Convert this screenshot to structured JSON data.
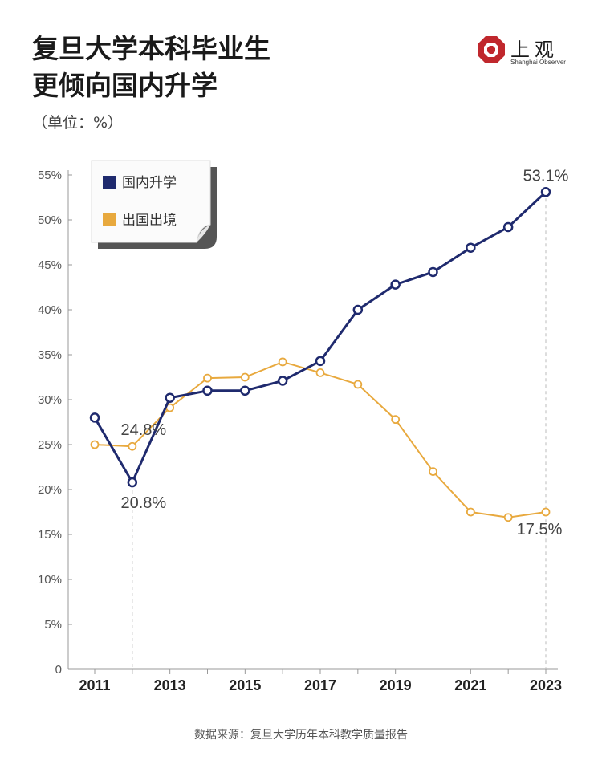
{
  "header": {
    "title_line1": "复旦大学本科毕业生",
    "title_line2": "更倾向国内升学",
    "unit": "（单位：%）"
  },
  "logo": {
    "name": "上观",
    "subtitle": "Shanghai Observer",
    "color": "#c0282d"
  },
  "source": "数据来源：复旦大学历年本科教学质量报告",
  "colors": {
    "domestic": "#1f2a6e",
    "abroad": "#e8a93e",
    "axis": "#999999",
    "legend_shadow": "#555555"
  },
  "chart_data": {
    "type": "line",
    "title": "复旦大学本科毕业生更倾向国内升学",
    "ylabel": "（单位：%）",
    "x": [
      2011,
      2012,
      2013,
      2014,
      2015,
      2016,
      2017,
      2018,
      2019,
      2020,
      2021,
      2022,
      2023
    ],
    "x_tick_labels": [
      "2011",
      "2013",
      "2015",
      "2017",
      "2019",
      "2021",
      "2023"
    ],
    "y_tick_labels": [
      "0",
      "5%",
      "10%",
      "15%",
      "20%",
      "25%",
      "30%",
      "35%",
      "40%",
      "45%",
      "50%",
      "55%"
    ],
    "ylim": [
      0,
      55
    ],
    "grid": false,
    "legend_position": "top-left",
    "series": [
      {
        "name": "国内升学",
        "color": "#1f2a6e",
        "values": [
          28.0,
          20.8,
          30.2,
          31.0,
          31.0,
          32.1,
          34.3,
          40.0,
          42.8,
          44.2,
          46.9,
          49.2,
          53.1
        ]
      },
      {
        "name": "出国出境",
        "color": "#e8a93e",
        "values": [
          25.0,
          24.8,
          29.1,
          32.4,
          32.5,
          34.2,
          33.0,
          31.7,
          27.8,
          22.0,
          17.5,
          16.9,
          17.5
        ]
      }
    ],
    "annotations": [
      {
        "text": "53.1%",
        "x": 2023,
        "series": "国内升学"
      },
      {
        "text": "24.8%",
        "x": 2012,
        "series": "出国出境"
      },
      {
        "text": "20.8%",
        "x": 2012,
        "series": "国内升学"
      },
      {
        "text": "17.5%",
        "x": 2023,
        "series": "出国出境"
      }
    ]
  }
}
